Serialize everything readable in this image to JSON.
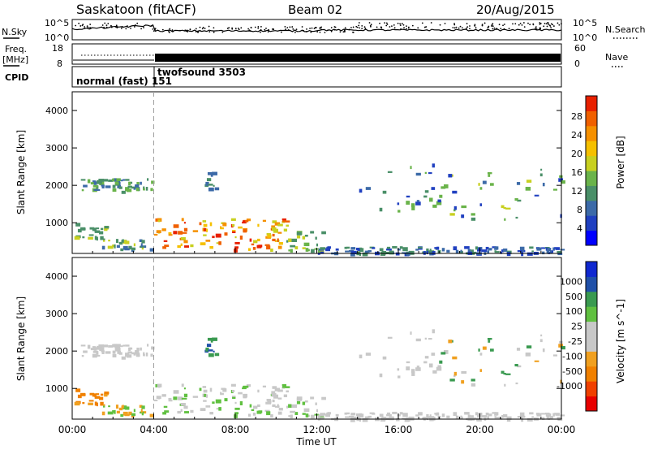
{
  "header": {
    "title": "Saskatoon (fitACF)",
    "beam": "Beam 02",
    "date": "20/Aug/2015"
  },
  "panels": {
    "nsky_label": "N.Sky",
    "nsky_ticks": [
      "10^5",
      "10^0"
    ],
    "nsearch_label": "N.Search",
    "freq_label_1": "Freq.",
    "freq_label_2": "[MHz]",
    "freq_ticks": [
      "18",
      "8"
    ],
    "nave_ticks": [
      "60",
      "0"
    ],
    "nave_label": "Nave",
    "cpid_label": "CPID",
    "cpid_1": "normal (fast) 151",
    "cpid_2": "twofsound 3503"
  },
  "chart_data": [
    {
      "type": "heatmap",
      "title": "",
      "ylabel": "Slant Range [km]",
      "xlabel": "Time UT",
      "xlim": [
        "00:00",
        "24:00"
      ],
      "ylim": [
        180,
        4500
      ],
      "x_ticks": [
        "00:00",
        "04:00",
        "08:00",
        "12:00",
        "16:00",
        "20:00",
        "00:00"
      ],
      "y_ticks": [
        1000,
        2000,
        3000,
        4000
      ],
      "colorbar": {
        "label": "Power [dB]",
        "ticks": [
          "28",
          "24",
          "20",
          "16",
          "12",
          "8",
          "4"
        ],
        "colors": [
          "#0000ff",
          "#2040c0",
          "#3c6aa8",
          "#4a8f68",
          "#6ab34a",
          "#c8d020",
          "#f5c000",
          "#f59000",
          "#f06000",
          "#e82000"
        ]
      },
      "mode_change_hour": 4.0
    },
    {
      "type": "heatmap",
      "title": "",
      "ylabel": "Slant Range [km]",
      "xlabel": "Time UT",
      "xlim": [
        "00:00",
        "24:00"
      ],
      "ylim": [
        180,
        4500
      ],
      "x_ticks": [
        "00:00",
        "04:00",
        "08:00",
        "12:00",
        "16:00",
        "20:00",
        "00:00"
      ],
      "y_ticks": [
        1000,
        2000,
        3000,
        4000
      ],
      "colorbar": {
        "label": "Velocity [m s^-1]",
        "ticks": [
          "1000",
          "500",
          "100",
          "25",
          "-25",
          "-100",
          "-500",
          "-1000"
        ],
        "colors": [
          "#e80000",
          "#f04000",
          "#f08000",
          "#f0a020",
          "#c8c8c8",
          "#c8c8c8",
          "#60c040",
          "#3a9a50",
          "#2050a8",
          "#1028d0"
        ]
      },
      "mode_change_hour": 4.0
    }
  ]
}
